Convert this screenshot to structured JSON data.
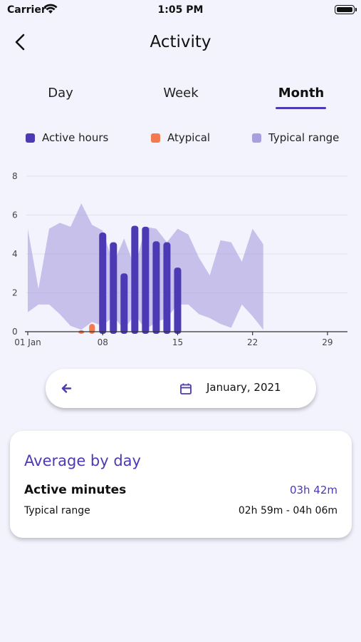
{
  "status_bar": {
    "carrier": "Carrier",
    "time": "1:05 PM"
  },
  "header": {
    "title": "Activity"
  },
  "tabs": [
    {
      "label": "Day",
      "active": false
    },
    {
      "label": "Week",
      "active": false
    },
    {
      "label": "Month",
      "active": true
    }
  ],
  "legend": [
    {
      "label": "Active hours",
      "color": "#4b3ab4"
    },
    {
      "label": "Atypical",
      "color": "#f37a50"
    },
    {
      "label": "Typical range",
      "color": "#a99ee0"
    }
  ],
  "chart_data": {
    "type": "bar",
    "title": "",
    "xlabel": "",
    "ylabel": "",
    "ylim": [
      0,
      8
    ],
    "xlim": [
      1,
      31
    ],
    "y_ticks": [
      "0",
      "2",
      "4",
      "6",
      "8"
    ],
    "x_ticks": [
      {
        "day": 1,
        "label": "01 Jan"
      },
      {
        "day": 8,
        "label": "08"
      },
      {
        "day": 15,
        "label": "15"
      },
      {
        "day": 22,
        "label": "22"
      },
      {
        "day": 29,
        "label": "29"
      }
    ],
    "grid": true,
    "legend_position": "top",
    "series": [
      {
        "name": "Active hours",
        "points": [
          {
            "day": 8,
            "value": 5.1
          },
          {
            "day": 9,
            "value": 4.6
          },
          {
            "day": 10,
            "value": 3.0
          },
          {
            "day": 11,
            "value": 5.45
          },
          {
            "day": 12,
            "value": 5.4
          },
          {
            "day": 13,
            "value": 4.65
          },
          {
            "day": 14,
            "value": 4.6
          },
          {
            "day": 15,
            "value": 3.3
          }
        ]
      },
      {
        "name": "Atypical",
        "points": [
          {
            "day": 6,
            "value": 0.05
          },
          {
            "day": 7,
            "value": 0.4
          }
        ]
      },
      {
        "name": "Typical range",
        "type": "area",
        "days": [
          1,
          2,
          3,
          4,
          5,
          6,
          7,
          8,
          9,
          10,
          11,
          12,
          13,
          14,
          15,
          16,
          17,
          18,
          19,
          20,
          21,
          22,
          23
        ],
        "upper": [
          5.3,
          2.2,
          5.3,
          5.6,
          5.4,
          6.6,
          5.5,
          5.2,
          3.5,
          4.8,
          3.3,
          5.4,
          5.3,
          4.6,
          5.3,
          5.0,
          3.8,
          2.9,
          4.7,
          4.6,
          3.6,
          5.3,
          4.5
        ],
        "lower": [
          1.0,
          1.4,
          1.4,
          0.9,
          0.3,
          0.1,
          0.5,
          0.3,
          0.8,
          0.1,
          0.9,
          0.1,
          0.5,
          0.7,
          1.4,
          1.4,
          0.9,
          0.7,
          0.4,
          0.2,
          1.4,
          0.8,
          0.1
        ]
      }
    ]
  },
  "date_selector": {
    "label": "January, 2021"
  },
  "average_card": {
    "title": "Average by day",
    "active_label": "Active minutes",
    "active_value": "03h 42m",
    "typical_label": "Typical range",
    "typical_value": "02h 59m - 04h 06m"
  }
}
